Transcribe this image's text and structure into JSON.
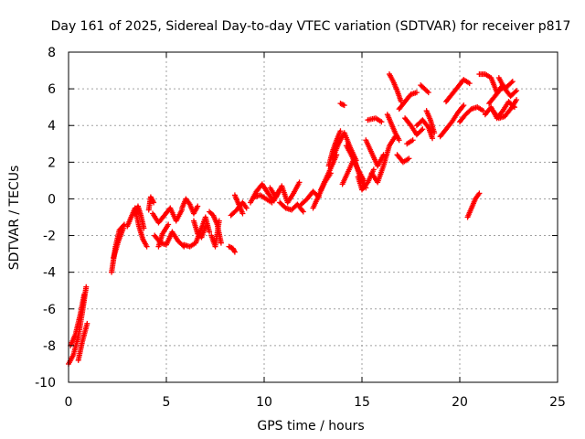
{
  "chart_data": {
    "type": "scatter",
    "title": "Day 161 of 2025, Sidereal Day-to-day VTEC variation (SDTVAR) for receiver p817",
    "xlabel": "GPS time / hours",
    "ylabel": "SDTVAR / TECUs",
    "xlim": [
      0,
      25
    ],
    "ylim": [
      -10,
      8
    ],
    "xticks": [
      0,
      5,
      10,
      15,
      20,
      25
    ],
    "yticks": [
      -10,
      -8,
      -6,
      -4,
      -2,
      0,
      2,
      4,
      6,
      8
    ],
    "grid": true,
    "marker": "+",
    "colors": {
      "series": "#ff0000",
      "axis": "#000000",
      "grid": "#a0a0a0"
    },
    "series": [
      {
        "name": "SDTVAR",
        "segments": [
          {
            "x": [
              0.0,
              0.25,
              0.5,
              0.7,
              0.9
            ],
            "y": [
              -9.0,
              -8.5,
              -7.5,
              -6.2,
              -4.8
            ]
          },
          {
            "x": [
              0.1,
              0.35,
              0.6,
              0.8
            ],
            "y": [
              -8.0,
              -7.4,
              -6.3,
              -5.2
            ]
          },
          {
            "x": [
              0.5,
              0.7,
              0.95
            ],
            "y": [
              -8.8,
              -7.8,
              -6.8
            ]
          },
          {
            "x": [
              2.2,
              2.4,
              2.6,
              2.85
            ],
            "y": [
              -4.0,
              -2.6,
              -1.7,
              -1.4
            ]
          },
          {
            "x": [
              2.3,
              2.55,
              2.8
            ],
            "y": [
              -3.2,
              -2.3,
              -1.6
            ]
          },
          {
            "x": [
              3.0,
              3.2,
              3.4,
              3.6,
              3.8,
              4.0
            ],
            "y": [
              -1.5,
              -1.0,
              -0.5,
              -1.5,
              -2.2,
              -2.6
            ]
          },
          {
            "x": [
              3.4,
              3.55,
              3.7,
              3.85
            ],
            "y": [
              -0.8,
              -0.4,
              -0.9,
              -1.6
            ]
          },
          {
            "x": [
              4.1,
              4.2,
              4.35
            ],
            "y": [
              -0.6,
              0.1,
              -0.2
            ]
          },
          {
            "x": [
              4.3,
              4.6,
              4.9,
              5.2,
              5.5,
              5.8
            ],
            "y": [
              -0.8,
              -1.3,
              -0.9,
              -0.5,
              -1.2,
              -0.6
            ]
          },
          {
            "x": [
              4.4,
              4.7,
              5.0,
              5.3,
              5.6,
              5.9
            ],
            "y": [
              -2.0,
              -2.4,
              -2.5,
              -1.8,
              -2.3,
              -2.6
            ]
          },
          {
            "x": [
              4.6,
              4.8,
              5.1
            ],
            "y": [
              -2.6,
              -1.9,
              -1.4
            ]
          },
          {
            "x": [
              5.8,
              6.0,
              6.2,
              6.4,
              6.6
            ],
            "y": [
              -0.5,
              0.0,
              -0.3,
              -0.8,
              -0.4
            ]
          },
          {
            "x": [
              5.9,
              6.2,
              6.5,
              6.8,
              7.0,
              7.2
            ],
            "y": [
              -2.5,
              -2.6,
              -2.4,
              -1.6,
              -1.0,
              -1.8
            ]
          },
          {
            "x": [
              6.4,
              6.6,
              6.8,
              7.0
            ],
            "y": [
              -1.2,
              -1.9,
              -2.1,
              -1.5
            ]
          },
          {
            "x": [
              7.2,
              7.4,
              7.6,
              7.8
            ],
            "y": [
              -0.7,
              -0.9,
              -1.4,
              -2.4
            ]
          },
          {
            "x": [
              7.3,
              7.5,
              7.7
            ],
            "y": [
              -2.0,
              -2.6,
              -1.2
            ]
          },
          {
            "x": [
              8.2,
              8.4,
              8.5
            ],
            "y": [
              -2.6,
              -2.7,
              -2.9
            ]
          },
          {
            "x": [
              8.3,
              8.6,
              8.9,
              9.1
            ],
            "y": [
              -0.9,
              -0.6,
              -0.2,
              -0.5
            ]
          },
          {
            "x": [
              8.5,
              8.7,
              8.9
            ],
            "y": [
              0.2,
              -0.3,
              -0.8
            ]
          },
          {
            "x": [
              9.3,
              9.6,
              9.9,
              10.2,
              10.5,
              10.8
            ],
            "y": [
              -0.2,
              0.4,
              0.8,
              0.3,
              -0.1,
              0.5
            ]
          },
          {
            "x": [
              9.5,
              9.8,
              10.1,
              10.4
            ],
            "y": [
              0.1,
              0.2,
              0.0,
              -0.2
            ]
          },
          {
            "x": [
              10.3,
              10.6,
              10.9,
              11.2,
              11.5,
              11.8
            ],
            "y": [
              0.6,
              0.1,
              0.7,
              -0.2,
              0.3,
              0.9
            ]
          },
          {
            "x": [
              10.8,
              11.1,
              11.4,
              11.7,
              12.0
            ],
            "y": [
              -0.2,
              -0.5,
              -0.6,
              -0.3,
              -0.7
            ]
          },
          {
            "x": [
              11.9,
              12.2,
              12.5,
              12.8
            ],
            "y": [
              -0.3,
              0.0,
              0.4,
              0.1
            ]
          },
          {
            "x": [
              12.5,
              12.8,
              13.1,
              13.4
            ],
            "y": [
              -0.5,
              0.2,
              0.9,
              1.4
            ]
          },
          {
            "x": [
              12.9,
              13.2,
              13.5,
              13.7
            ],
            "y": [
              0.5,
              1.2,
              1.9,
              2.4
            ]
          },
          {
            "x": [
              13.3,
              13.5,
              13.7,
              13.9
            ],
            "y": [
              1.8,
              2.6,
              3.2,
              3.7
            ]
          },
          {
            "x": [
              13.5,
              13.8,
              14.1,
              14.4,
              14.7
            ],
            "y": [
              2.2,
              3.0,
              3.6,
              2.8,
              2.1
            ]
          },
          {
            "x": [
              13.9,
              14.1
            ],
            "y": [
              5.2,
              5.1
            ]
          },
          {
            "x": [
              14.0,
              14.3,
              14.6,
              14.9,
              15.2
            ],
            "y": [
              0.8,
              1.5,
              2.2,
              1.2,
              0.6
            ]
          },
          {
            "x": [
              14.2,
              14.5,
              14.8,
              15.1
            ],
            "y": [
              2.9,
              2.3,
              1.6,
              1.0
            ]
          },
          {
            "x": [
              14.8,
              15.0,
              15.3,
              15.6
            ],
            "y": [
              1.2,
              0.5,
              0.9,
              1.6
            ]
          },
          {
            "x": [
              15.2,
              15.5,
              15.8,
              16.1
            ],
            "y": [
              3.2,
              2.5,
              1.8,
              2.4
            ]
          },
          {
            "x": [
              15.3,
              15.7,
              16.0
            ],
            "y": [
              4.3,
              4.4,
              4.2
            ]
          },
          {
            "x": [
              15.5,
              15.8,
              16.1,
              16.4,
              16.7
            ],
            "y": [
              1.4,
              0.9,
              1.8,
              2.9,
              3.4
            ]
          },
          {
            "x": [
              16.3,
              16.5,
              16.7,
              16.9
            ],
            "y": [
              4.6,
              4.1,
              3.6,
              3.2
            ]
          },
          {
            "x": [
              16.4,
              16.6,
              16.8,
              17.0
            ],
            "y": [
              6.8,
              6.4,
              5.9,
              5.3
            ]
          },
          {
            "x": [
              16.8,
              17.1,
              17.4
            ],
            "y": [
              2.4,
              2.0,
              2.2
            ]
          },
          {
            "x": [
              16.9,
              17.2,
              17.5,
              17.8
            ],
            "y": [
              4.9,
              5.3,
              5.7,
              5.8
            ]
          },
          {
            "x": [
              17.2,
              17.5,
              17.8,
              18.1
            ],
            "y": [
              4.4,
              4.0,
              3.5,
              3.8
            ]
          },
          {
            "x": [
              17.3,
              17.6
            ],
            "y": [
              3.0,
              3.2
            ]
          },
          {
            "x": [
              17.8,
              18.1,
              18.4,
              18.6
            ],
            "y": [
              4.0,
              4.3,
              3.9,
              3.3
            ]
          },
          {
            "x": [
              18.0,
              18.2,
              18.4
            ],
            "y": [
              6.2,
              6.0,
              5.8
            ]
          },
          {
            "x": [
              18.3,
              18.5,
              18.7
            ],
            "y": [
              4.8,
              4.3,
              3.6
            ]
          },
          {
            "x": [
              19.0,
              19.3,
              19.6,
              19.9,
              20.2
            ],
            "y": [
              3.4,
              3.8,
              4.2,
              4.7,
              5.1
            ]
          },
          {
            "x": [
              19.3,
              19.6,
              19.9,
              20.2,
              20.5
            ],
            "y": [
              5.3,
              5.7,
              6.1,
              6.5,
              6.3
            ]
          },
          {
            "x": [
              20.0,
              20.3,
              20.6,
              20.9,
              21.2
            ],
            "y": [
              4.2,
              4.6,
              4.9,
              5.0,
              4.8
            ]
          },
          {
            "x": [
              20.4,
              20.6,
              20.8,
              21.0
            ],
            "y": [
              -1.0,
              -0.5,
              0.0,
              0.3
            ]
          },
          {
            "x": [
              21.0,
              21.3,
              21.6,
              21.9,
              22.2
            ],
            "y": [
              6.8,
              6.8,
              6.6,
              5.8,
              6.2
            ]
          },
          {
            "x": [
              21.3,
              21.6,
              21.9,
              22.2,
              22.5,
              22.8
            ],
            "y": [
              4.6,
              5.0,
              4.4,
              4.8,
              5.3,
              5.0
            ]
          },
          {
            "x": [
              21.5,
              21.8,
              22.1,
              22.4,
              22.7
            ],
            "y": [
              5.2,
              5.6,
              6.0,
              6.1,
              6.4
            ]
          },
          {
            "x": [
              21.7,
              22.0,
              22.3,
              22.6,
              22.9
            ],
            "y": [
              4.8,
              4.4,
              4.5,
              4.9,
              5.4
            ]
          },
          {
            "x": [
              22.0,
              22.3,
              22.6,
              22.9
            ],
            "y": [
              6.6,
              6.0,
              5.6,
              5.9
            ]
          }
        ]
      }
    ]
  }
}
